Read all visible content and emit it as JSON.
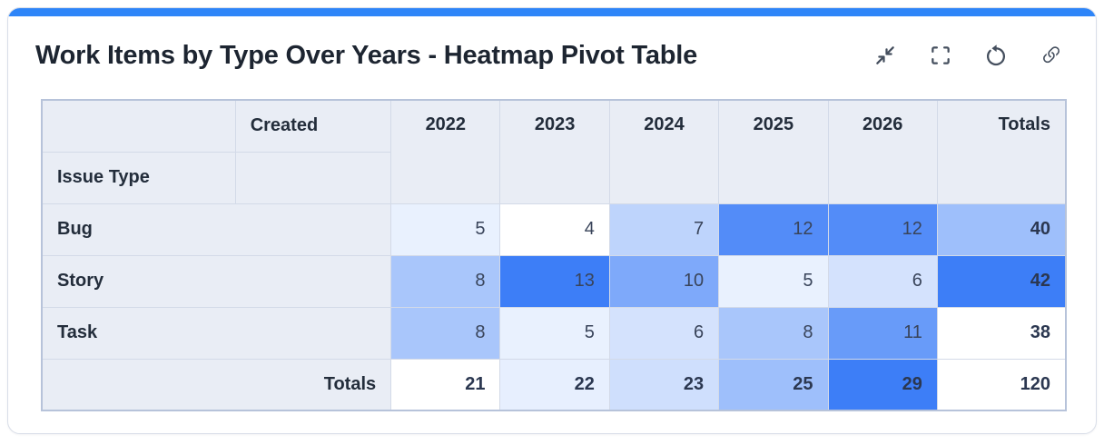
{
  "card": {
    "title": "Work Items by Type Over Years - Heatmap Pivot Table",
    "accent_color": "#2e85f8"
  },
  "toolbar": {
    "icons": [
      "collapse-icon",
      "fullscreen-icon",
      "refresh-icon",
      "link-icon"
    ],
    "icon_color": "#454f5e"
  },
  "chart_data": {
    "type": "heatmap",
    "title": "Work Items by Type Over Years - Heatmap Pivot Table",
    "column_axis_label": "Created",
    "row_axis_label": "Issue Type",
    "totals_label": "Totals",
    "columns": [
      "2022",
      "2023",
      "2024",
      "2025",
      "2026"
    ],
    "rows": [
      "Bug",
      "Story",
      "Task"
    ],
    "values": [
      [
        5,
        4,
        7,
        12,
        12
      ],
      [
        8,
        13,
        10,
        5,
        6
      ],
      [
        8,
        5,
        6,
        8,
        11
      ]
    ],
    "row_totals": [
      40,
      42,
      38
    ],
    "column_totals": [
      21,
      22,
      23,
      25,
      29
    ],
    "grand_total": 120,
    "heat_scale": {
      "min_color": "#ffffff",
      "max_color": "#3d7ef7"
    },
    "legend": "none",
    "header_bg_color": "#e9edf5",
    "cell_text_color": "#39445a"
  }
}
